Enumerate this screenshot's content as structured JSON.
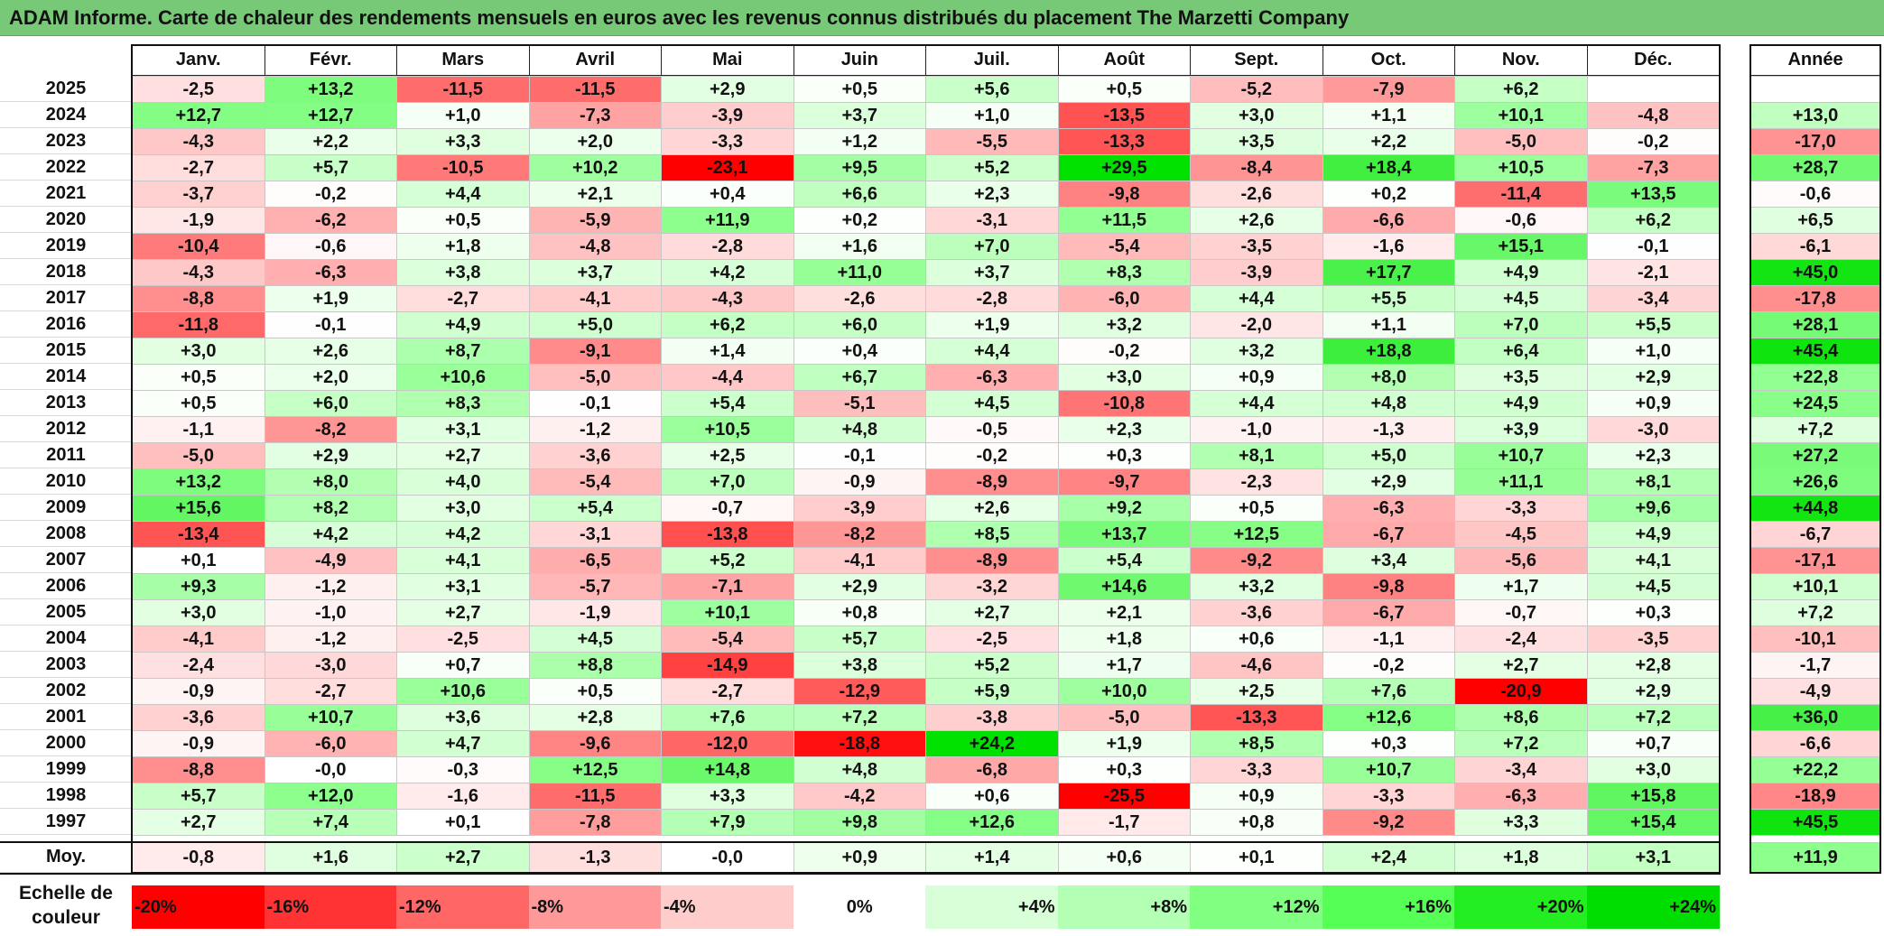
{
  "title": "ADAM Informe. Carte de chaleur des rendements mensuels en euros avec les revenus connus distribués du placement The Marzetti Company",
  "chart_data": {
    "type": "heatmap",
    "title": "ADAM Informe. Carte de chaleur des rendements mensuels en euros avec les revenus connus distribués du placement The Marzetti Company",
    "months": [
      "Janv.",
      "Févr.",
      "Mars",
      "Avril",
      "Mai",
      "Juin",
      "Juil.",
      "Août",
      "Sept.",
      "Oct.",
      "Nov.",
      "Déc."
    ],
    "year_header": "Année",
    "rows": [
      {
        "year": "2025",
        "values": [
          "-2,5",
          "+13,2",
          "-11,5",
          "-11,5",
          "+2,9",
          "+0,5",
          "+5,6",
          "+0,5",
          "-5,2",
          "-7,9",
          "+6,2",
          ""
        ],
        "annual": ""
      },
      {
        "year": "2024",
        "values": [
          "+12,7",
          "+12,7",
          "+1,0",
          "-7,3",
          "-3,9",
          "+3,7",
          "+1,0",
          "-13,5",
          "+3,0",
          "+1,1",
          "+10,1",
          "-4,8"
        ],
        "annual": "+13,0"
      },
      {
        "year": "2023",
        "values": [
          "-4,3",
          "+2,2",
          "+3,3",
          "+2,0",
          "-3,3",
          "+1,2",
          "-5,5",
          "-13,3",
          "+3,5",
          "+2,2",
          "-5,0",
          "-0,2"
        ],
        "annual": "-17,0"
      },
      {
        "year": "2022",
        "values": [
          "-2,7",
          "+5,7",
          "-10,5",
          "+10,2",
          "-23,1",
          "+9,5",
          "+5,2",
          "+29,5",
          "-8,4",
          "+18,4",
          "+10,5",
          "-7,3"
        ],
        "annual": "+28,7"
      },
      {
        "year": "2021",
        "values": [
          "-3,7",
          "-0,2",
          "+4,4",
          "+2,1",
          "+0,4",
          "+6,6",
          "+2,3",
          "-9,8",
          "-2,6",
          "+0,2",
          "-11,4",
          "+13,5"
        ],
        "annual": "-0,6"
      },
      {
        "year": "2020",
        "values": [
          "-1,9",
          "-6,2",
          "+0,5",
          "-5,9",
          "+11,9",
          "+0,2",
          "-3,1",
          "+11,5",
          "+2,6",
          "-6,6",
          "-0,6",
          "+6,2"
        ],
        "annual": "+6,5"
      },
      {
        "year": "2019",
        "values": [
          "-10,4",
          "-0,6",
          "+1,8",
          "-4,8",
          "-2,8",
          "+1,6",
          "+7,0",
          "-5,4",
          "-3,5",
          "-1,6",
          "+15,1",
          "-0,1"
        ],
        "annual": "-6,1"
      },
      {
        "year": "2018",
        "values": [
          "-4,3",
          "-6,3",
          "+3,8",
          "+3,7",
          "+4,2",
          "+11,0",
          "+3,7",
          "+8,3",
          "-3,9",
          "+17,7",
          "+4,9",
          "-2,1"
        ],
        "annual": "+45,0"
      },
      {
        "year": "2017",
        "values": [
          "-8,8",
          "+1,9",
          "-2,7",
          "-4,1",
          "-4,3",
          "-2,6",
          "-2,8",
          "-6,0",
          "+4,4",
          "+5,5",
          "+4,5",
          "-3,4"
        ],
        "annual": "-17,8"
      },
      {
        "year": "2016",
        "values": [
          "-11,8",
          "-0,1",
          "+4,9",
          "+5,0",
          "+6,2",
          "+6,0",
          "+1,9",
          "+3,2",
          "-2,0",
          "+1,1",
          "+7,0",
          "+5,5"
        ],
        "annual": "+28,1"
      },
      {
        "year": "2015",
        "values": [
          "+3,0",
          "+2,6",
          "+8,7",
          "-9,1",
          "+1,4",
          "+0,4",
          "+4,4",
          "-0,2",
          "+3,2",
          "+18,8",
          "+6,4",
          "+1,0"
        ],
        "annual": "+45,4"
      },
      {
        "year": "2014",
        "values": [
          "+0,5",
          "+2,0",
          "+10,6",
          "-5,0",
          "-4,4",
          "+6,7",
          "-6,3",
          "+3,0",
          "+0,9",
          "+8,0",
          "+3,5",
          "+2,9"
        ],
        "annual": "+22,8"
      },
      {
        "year": "2013",
        "values": [
          "+0,5",
          "+6,0",
          "+8,3",
          "-0,1",
          "+5,4",
          "-5,1",
          "+4,5",
          "-10,8",
          "+4,4",
          "+4,8",
          "+4,9",
          "+0,9"
        ],
        "annual": "+24,5"
      },
      {
        "year": "2012",
        "values": [
          "-1,1",
          "-8,2",
          "+3,1",
          "-1,2",
          "+10,5",
          "+4,8",
          "-0,5",
          "+2,3",
          "-1,0",
          "-1,3",
          "+3,9",
          "-3,0"
        ],
        "annual": "+7,2"
      },
      {
        "year": "2011",
        "values": [
          "-5,0",
          "+2,9",
          "+2,7",
          "-3,6",
          "+2,5",
          "-0,1",
          "-0,2",
          "+0,3",
          "+8,1",
          "+5,0",
          "+10,7",
          "+2,3"
        ],
        "annual": "+27,2"
      },
      {
        "year": "2010",
        "values": [
          "+13,2",
          "+8,0",
          "+4,0",
          "-5,4",
          "+7,0",
          "-0,9",
          "-8,9",
          "-9,7",
          "-2,3",
          "+2,9",
          "+11,1",
          "+8,1"
        ],
        "annual": "+26,6"
      },
      {
        "year": "2009",
        "values": [
          "+15,6",
          "+8,2",
          "+3,0",
          "+5,4",
          "-0,7",
          "-3,9",
          "+2,6",
          "+9,2",
          "+0,5",
          "-6,3",
          "-3,3",
          "+9,6"
        ],
        "annual": "+44,8"
      },
      {
        "year": "2008",
        "values": [
          "-13,4",
          "+4,2",
          "+4,2",
          "-3,1",
          "-13,8",
          "-8,2",
          "+8,5",
          "+13,7",
          "+12,5",
          "-6,7",
          "-4,5",
          "+4,9"
        ],
        "annual": "-6,7"
      },
      {
        "year": "2007",
        "values": [
          "+0,1",
          "-4,9",
          "+4,1",
          "-6,5",
          "+5,2",
          "-4,1",
          "-8,9",
          "+5,4",
          "-9,2",
          "+3,4",
          "-5,6",
          "+4,1"
        ],
        "annual": "-17,1"
      },
      {
        "year": "2006",
        "values": [
          "+9,3",
          "-1,2",
          "+3,1",
          "-5,7",
          "-7,1",
          "+2,9",
          "-3,2",
          "+14,6",
          "+3,2",
          "-9,8",
          "+1,7",
          "+4,5"
        ],
        "annual": "+10,1"
      },
      {
        "year": "2005",
        "values": [
          "+3,0",
          "-1,0",
          "+2,7",
          "-1,9",
          "+10,1",
          "+0,8",
          "+2,7",
          "+2,1",
          "-3,6",
          "-6,7",
          "-0,7",
          "+0,3"
        ],
        "annual": "+7,2"
      },
      {
        "year": "2004",
        "values": [
          "-4,1",
          "-1,2",
          "-2,5",
          "+4,5",
          "-5,4",
          "+5,7",
          "-2,5",
          "+1,8",
          "+0,6",
          "-1,1",
          "-2,4",
          "-3,5"
        ],
        "annual": "-10,1"
      },
      {
        "year": "2003",
        "values": [
          "-2,4",
          "-3,0",
          "+0,7",
          "+8,8",
          "-14,9",
          "+3,8",
          "+5,2",
          "+1,7",
          "-4,6",
          "-0,2",
          "+2,7",
          "+2,8"
        ],
        "annual": "-1,7"
      },
      {
        "year": "2002",
        "values": [
          "-0,9",
          "-2,7",
          "+10,6",
          "+0,5",
          "-2,7",
          "-12,9",
          "+5,9",
          "+10,0",
          "+2,5",
          "+7,6",
          "-20,9",
          "+2,9"
        ],
        "annual": "-4,9"
      },
      {
        "year": "2001",
        "values": [
          "-3,6",
          "+10,7",
          "+3,6",
          "+2,8",
          "+7,6",
          "+7,2",
          "-3,8",
          "-5,0",
          "-13,3",
          "+12,6",
          "+8,6",
          "+7,2"
        ],
        "annual": "+36,0"
      },
      {
        "year": "2000",
        "values": [
          "-0,9",
          "-6,0",
          "+4,7",
          "-9,6",
          "-12,0",
          "-18,8",
          "+24,2",
          "+1,9",
          "+8,5",
          "+0,3",
          "+7,2",
          "+0,7"
        ],
        "annual": "-6,6"
      },
      {
        "year": "1999",
        "values": [
          "-8,8",
          "-0,0",
          "-0,3",
          "+12,5",
          "+14,8",
          "+4,8",
          "-6,8",
          "+0,3",
          "-3,3",
          "+10,7",
          "-3,4",
          "+3,0"
        ],
        "annual": "+22,2"
      },
      {
        "year": "1998",
        "values": [
          "+5,7",
          "+12,0",
          "-1,6",
          "-11,5",
          "+3,3",
          "-4,2",
          "+0,6",
          "-25,5",
          "+0,9",
          "-3,3",
          "-6,3",
          "+15,8"
        ],
        "annual": "-18,9"
      },
      {
        "year": "1997",
        "values": [
          "+2,7",
          "+7,4",
          "+0,1",
          "-7,8",
          "+7,9",
          "+9,8",
          "+12,6",
          "-1,7",
          "+0,8",
          "-9,2",
          "+3,3",
          "+15,4"
        ],
        "annual": "+45,5"
      }
    ],
    "average": {
      "label": "Moy.",
      "values": [
        "-0,8",
        "+1,6",
        "+2,7",
        "-1,3",
        "-0,0",
        "+0,9",
        "+1,4",
        "+0,6",
        "+0,1",
        "+2,4",
        "+1,8",
        "+3,1"
      ],
      "annual": "+11,9"
    },
    "scale": {
      "label": "Echelle de couleur",
      "steps": [
        {
          "label": "-20%",
          "value": -20,
          "color": "#ff0000"
        },
        {
          "label": "-16%",
          "value": -16,
          "color": "#ff3333"
        },
        {
          "label": "-12%",
          "value": -12,
          "color": "#ff6666"
        },
        {
          "label": "-8%",
          "value": -8,
          "color": "#ff9999"
        },
        {
          "label": "-4%",
          "value": -4,
          "color": "#ffcccc"
        },
        {
          "label": "0%",
          "value": 0,
          "color": "#ffffff"
        },
        {
          "label": "+4%",
          "value": 4,
          "color": "#d9ffd9"
        },
        {
          "label": "+8%",
          "value": 8,
          "color": "#b3ffb3"
        },
        {
          "label": "+12%",
          "value": 12,
          "color": "#80ff80"
        },
        {
          "label": "+16%",
          "value": 16,
          "color": "#55ff55"
        },
        {
          "label": "+20%",
          "value": 20,
          "color": "#22ee22"
        },
        {
          "label": "+24%",
          "value": 24,
          "color": "#00dd00"
        }
      ]
    }
  }
}
